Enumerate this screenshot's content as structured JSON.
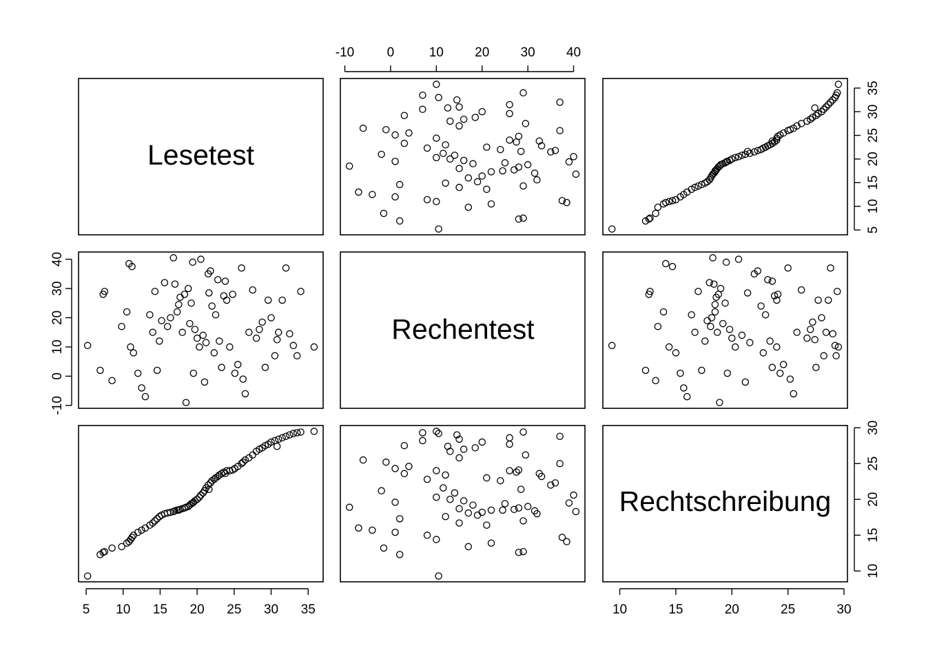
{
  "chart_data": {
    "type": "scatter",
    "title": "",
    "grid": false,
    "variables": [
      {
        "name": "Lesetest",
        "range": [
          5.2,
          35.8
        ],
        "ticks": [
          5,
          10,
          15,
          20,
          25,
          30,
          35
        ],
        "tick_labels": [
          "5",
          "10",
          "15",
          "20",
          "25",
          "30",
          "35"
        ]
      },
      {
        "name": "Rechentest",
        "range": [
          -9.0,
          40.5
        ],
        "ticks": [
          -10,
          0,
          10,
          20,
          30,
          40
        ],
        "tick_labels": [
          "-10",
          "0",
          "10",
          "20",
          "30",
          "40"
        ]
      },
      {
        "name": "Rechtschreibung",
        "range": [
          9.3,
          29.5
        ],
        "ticks": [
          10,
          15,
          20,
          25,
          30
        ],
        "tick_labels": [
          "10",
          "15",
          "20",
          "25",
          "30"
        ]
      }
    ],
    "observations": {
      "Lesetest": [
        5.2,
        6.9,
        7.3,
        7.5,
        9.8,
        10.5,
        10.8,
        11.0,
        11.2,
        11.4,
        12.0,
        12.5,
        13.0,
        13.6,
        14.0,
        14.3,
        14.6,
        14.9,
        15.2,
        15.6,
        16.0,
        16.4,
        16.8,
        17.0,
        17.3,
        17.7,
        18.0,
        18.3,
        18.5,
        18.8,
        19.0,
        19.2,
        19.5,
        19.7,
        20.0,
        20.3,
        20.5,
        20.8,
        21.0,
        21.2,
        21.5,
        21.8,
        22.0,
        22.3,
        22.5,
        22.8,
        23.0,
        23.3,
        23.6,
        24.0,
        24.4,
        24.8,
        25.1,
        25.5,
        26.0,
        26.5,
        27.0,
        27.5,
        28.0,
        28.4,
        28.8,
        29.2,
        29.6,
        30.0,
        30.5,
        31.0,
        31.5,
        32.0,
        32.5,
        33.0,
        33.5,
        34.0,
        35.8,
        8.5,
        19.4,
        21.6,
        26.2,
        30.8,
        17.5,
        23.8
      ],
      "Rechentest": [
        10.5,
        2.0,
        28.0,
        29.0,
        17.0,
        22.0,
        38.5,
        10.0,
        37.5,
        8.0,
        1.0,
        -4.0,
        -7.0,
        21.0,
        15.0,
        29.0,
        2.0,
        12.0,
        19.0,
        32.0,
        17.0,
        20.0,
        40.5,
        31.5,
        22.0,
        27.0,
        15.0,
        28.0,
        -9.0,
        30.0,
        18.0,
        25.0,
        1.0,
        16.0,
        13.0,
        10.0,
        40.0,
        14.0,
        -2.0,
        11.5,
        35.0,
        36.0,
        24.0,
        8.0,
        21.0,
        33.0,
        12.0,
        3.0,
        27.5,
        26.0,
        10.0,
        28.0,
        1.0,
        4.0,
        37.0,
        -6.0,
        15.0,
        29.5,
        13.0,
        16.0,
        18.5,
        3.0,
        26.0,
        20.0,
        7.0,
        15.0,
        26.0,
        37.0,
        14.5,
        10.5,
        7.0,
        29.0,
        10.0,
        -1.5,
        39.0,
        28.5,
        -1.0,
        12.5,
        24.5,
        32.5
      ],
      "Rechtschreibung": [
        9.3,
        12.3,
        12.6,
        12.7,
        13.4,
        13.9,
        14.1,
        14.4,
        14.7,
        15.0,
        15.4,
        15.7,
        16.0,
        16.4,
        16.7,
        17.0,
        17.3,
        17.6,
        17.8,
        18.0,
        18.1,
        18.2,
        18.3,
        18.4,
        18.5,
        18.6,
        18.7,
        18.8,
        18.9,
        19.0,
        19.2,
        19.4,
        19.6,
        19.8,
        20.0,
        20.3,
        20.6,
        20.9,
        21.2,
        21.6,
        22.0,
        22.3,
        22.6,
        22.8,
        23.0,
        23.2,
        23.4,
        23.6,
        23.8,
        24.0,
        24.0,
        24.1,
        24.3,
        24.6,
        25.0,
        25.5,
        25.8,
        26.2,
        26.7,
        27.0,
        27.2,
        27.5,
        27.7,
        28.0,
        28.2,
        28.4,
        28.6,
        28.8,
        29.0,
        29.2,
        29.3,
        29.4,
        29.5,
        13.2,
        19.5,
        21.4,
        25.2,
        27.4,
        18.5,
        23.6
      ]
    }
  }
}
